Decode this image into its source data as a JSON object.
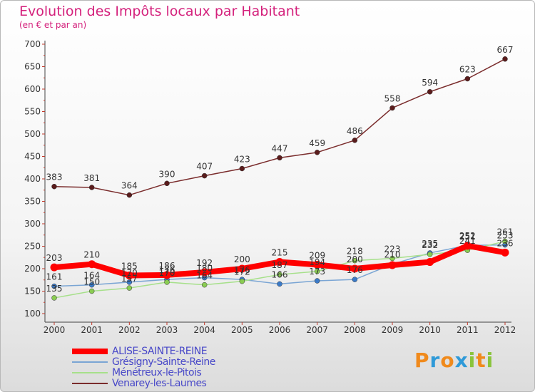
{
  "header": {
    "title": "Evolution des Impôts locaux par Habitant",
    "subtitle": "(en € et par an)"
  },
  "chart_data": {
    "type": "line",
    "x": [
      "2000",
      "2001",
      "2002",
      "2003",
      "2004",
      "2005",
      "2006",
      "2007",
      "2008",
      "2009",
      "2010",
      "2011",
      "2012"
    ],
    "ylim": [
      100,
      700
    ],
    "yticks": [
      100,
      150,
      200,
      250,
      300,
      350,
      400,
      450,
      500,
      550,
      600,
      650,
      700
    ],
    "grid": false,
    "legend_position": "bottom-left",
    "series": [
      {
        "name": "ALISE-SAINTE-REINE",
        "color": "#ff0000",
        "marker_color": "#ff0000",
        "values": [
          203,
          210,
          185,
          186,
          192,
          200,
          215,
          209,
          200,
          208,
          215,
          251,
          236
        ],
        "labels": [
          "203",
          "210",
          "185",
          "186",
          "192",
          "200",
          "215",
          "209",
          "200",
          "",
          "",
          "251",
          "236"
        ]
      },
      {
        "name": "Grésigny-Sainte-Reine",
        "color": "#7aa5d4",
        "marker_color": "#3a7ac8",
        "values": [
          161,
          164,
          170,
          176,
          180,
          176,
          166,
          173,
          176,
          210,
          235,
          252,
          253
        ],
        "labels": [
          "161",
          "164",
          "170",
          "176",
          "180",
          "176",
          "166",
          "173",
          "176",
          "210",
          "235",
          "252",
          "253"
        ]
      },
      {
        "name": "Ménétreux-le-Pitois",
        "color": "#a6e08a",
        "marker_color": "#8acc52",
        "values": [
          135,
          150,
          157,
          170,
          164,
          172,
          187,
          194,
          218,
          223,
          232,
          241,
          261
        ],
        "labels": [
          "135",
          "150",
          "157",
          "170",
          "164",
          "172",
          "187",
          "194",
          "218",
          "223",
          "232",
          "241",
          "261"
        ]
      },
      {
        "name": "Venarey-les-Laumes",
        "color": "#7a2c2c",
        "marker_color": "#5a1c1c",
        "values": [
          383,
          381,
          364,
          390,
          407,
          423,
          447,
          459,
          486,
          558,
          594,
          623,
          667
        ],
        "labels": [
          "383",
          "381",
          "364",
          "390",
          "407",
          "423",
          "447",
          "459",
          "486",
          "558",
          "594",
          "623",
          "667"
        ]
      }
    ]
  },
  "logo": {
    "letters": [
      "P",
      "r",
      "o",
      "x",
      "i",
      "t",
      "i"
    ],
    "colors": [
      "#f08a1c",
      "#2f9ad8",
      "#f08a1c",
      "#2f9ad8",
      "#8ac43c",
      "#f08a1c",
      "#8ac43c"
    ]
  }
}
